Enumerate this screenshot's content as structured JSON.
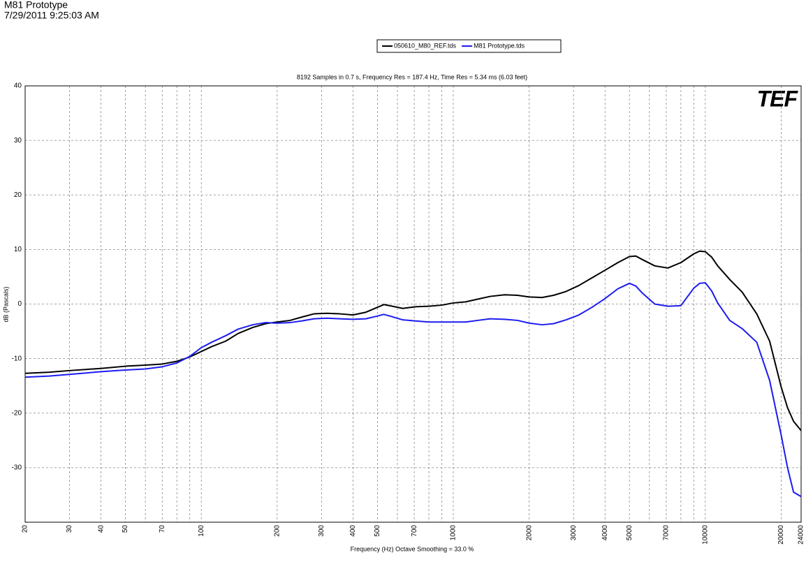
{
  "header": {
    "title": "M81 Prototype",
    "timestamp": "7/29/2011 9:25:03 AM"
  },
  "chart_data": {
    "type": "line",
    "title": "8192 Samples in 0.7 s, Frequency Res = 187.4 Hz, Time Res = 5.34 ms (6.03 feet)",
    "x_label": "Frequency (Hz) Octave Smoothing = 33.0 %",
    "y_label": "dB (Pascals)",
    "logo": "TEF",
    "x_scale": "log",
    "xlim": [
      20,
      24000
    ],
    "xticks": [
      20,
      30,
      40,
      50,
      70,
      100,
      200,
      300,
      400,
      500,
      700,
      1000,
      2000,
      3000,
      4000,
      5000,
      7000,
      10000,
      20000,
      24000
    ],
    "x_minor_ticks": [
      60,
      80,
      90,
      600,
      800,
      900,
      6000,
      8000,
      9000
    ],
    "ylim": [
      -40,
      40
    ],
    "yticks": [
      -30,
      -20,
      -10,
      0,
      10,
      20,
      30,
      40
    ],
    "grid": true,
    "legend": "top",
    "x": [
      20,
      25,
      30,
      40,
      50,
      60,
      70,
      80,
      90,
      100,
      110,
      125,
      140,
      160,
      180,
      200,
      225,
      250,
      280,
      315,
      355,
      400,
      450,
      500,
      530,
      560,
      630,
      710,
      800,
      900,
      1000,
      1120,
      1250,
      1400,
      1600,
      1800,
      2000,
      2250,
      2500,
      2800,
      3150,
      3550,
      4000,
      4500,
      5000,
      5300,
      5600,
      6300,
      7100,
      8000,
      9000,
      9500,
      10000,
      10600,
      11200,
      12500,
      14000,
      16000,
      18000,
      20000,
      21200,
      22400,
      24000
    ],
    "series": [
      {
        "name": "050610_M80_REF.tds",
        "color": "#000000",
        "values": [
          -12.7,
          -12.5,
          -12.2,
          -11.8,
          -11.4,
          -11.2,
          -11.0,
          -10.5,
          -9.7,
          -8.7,
          -7.8,
          -6.8,
          -5.4,
          -4.3,
          -3.6,
          -3.3,
          -3.0,
          -2.4,
          -1.8,
          -1.7,
          -1.8,
          -2.0,
          -1.5,
          -0.6,
          -0.1,
          -0.3,
          -0.8,
          -0.5,
          -0.4,
          -0.2,
          0.2,
          0.4,
          0.9,
          1.4,
          1.7,
          1.6,
          1.3,
          1.2,
          1.6,
          2.3,
          3.4,
          4.8,
          6.2,
          7.6,
          8.7,
          8.8,
          8.2,
          7.0,
          6.6,
          7.6,
          9.2,
          9.7,
          9.6,
          8.6,
          7.0,
          4.5,
          2.2,
          -1.8,
          -6.8,
          -15.2,
          -19.0,
          -21.5,
          -23.2
        ]
      },
      {
        "name": "M81 Prototype.tds",
        "color": "#1c1cf0",
        "values": [
          -13.4,
          -13.2,
          -12.9,
          -12.4,
          -12.1,
          -11.9,
          -11.5,
          -10.8,
          -9.6,
          -8.0,
          -7.0,
          -5.8,
          -4.6,
          -3.8,
          -3.4,
          -3.5,
          -3.4,
          -3.1,
          -2.7,
          -2.6,
          -2.7,
          -2.8,
          -2.7,
          -2.2,
          -1.9,
          -2.2,
          -2.9,
          -3.1,
          -3.3,
          -3.3,
          -3.3,
          -3.3,
          -3.0,
          -2.7,
          -2.8,
          -3.0,
          -3.5,
          -3.8,
          -3.6,
          -2.9,
          -2.0,
          -0.6,
          1.0,
          2.8,
          3.8,
          3.3,
          2.1,
          0.0,
          -0.4,
          -0.3,
          2.9,
          3.8,
          3.9,
          2.4,
          0.2,
          -3.0,
          -4.5,
          -7.0,
          -14.0,
          -24.0,
          -30.0,
          -34.5,
          -35.3
        ]
      }
    ]
  }
}
